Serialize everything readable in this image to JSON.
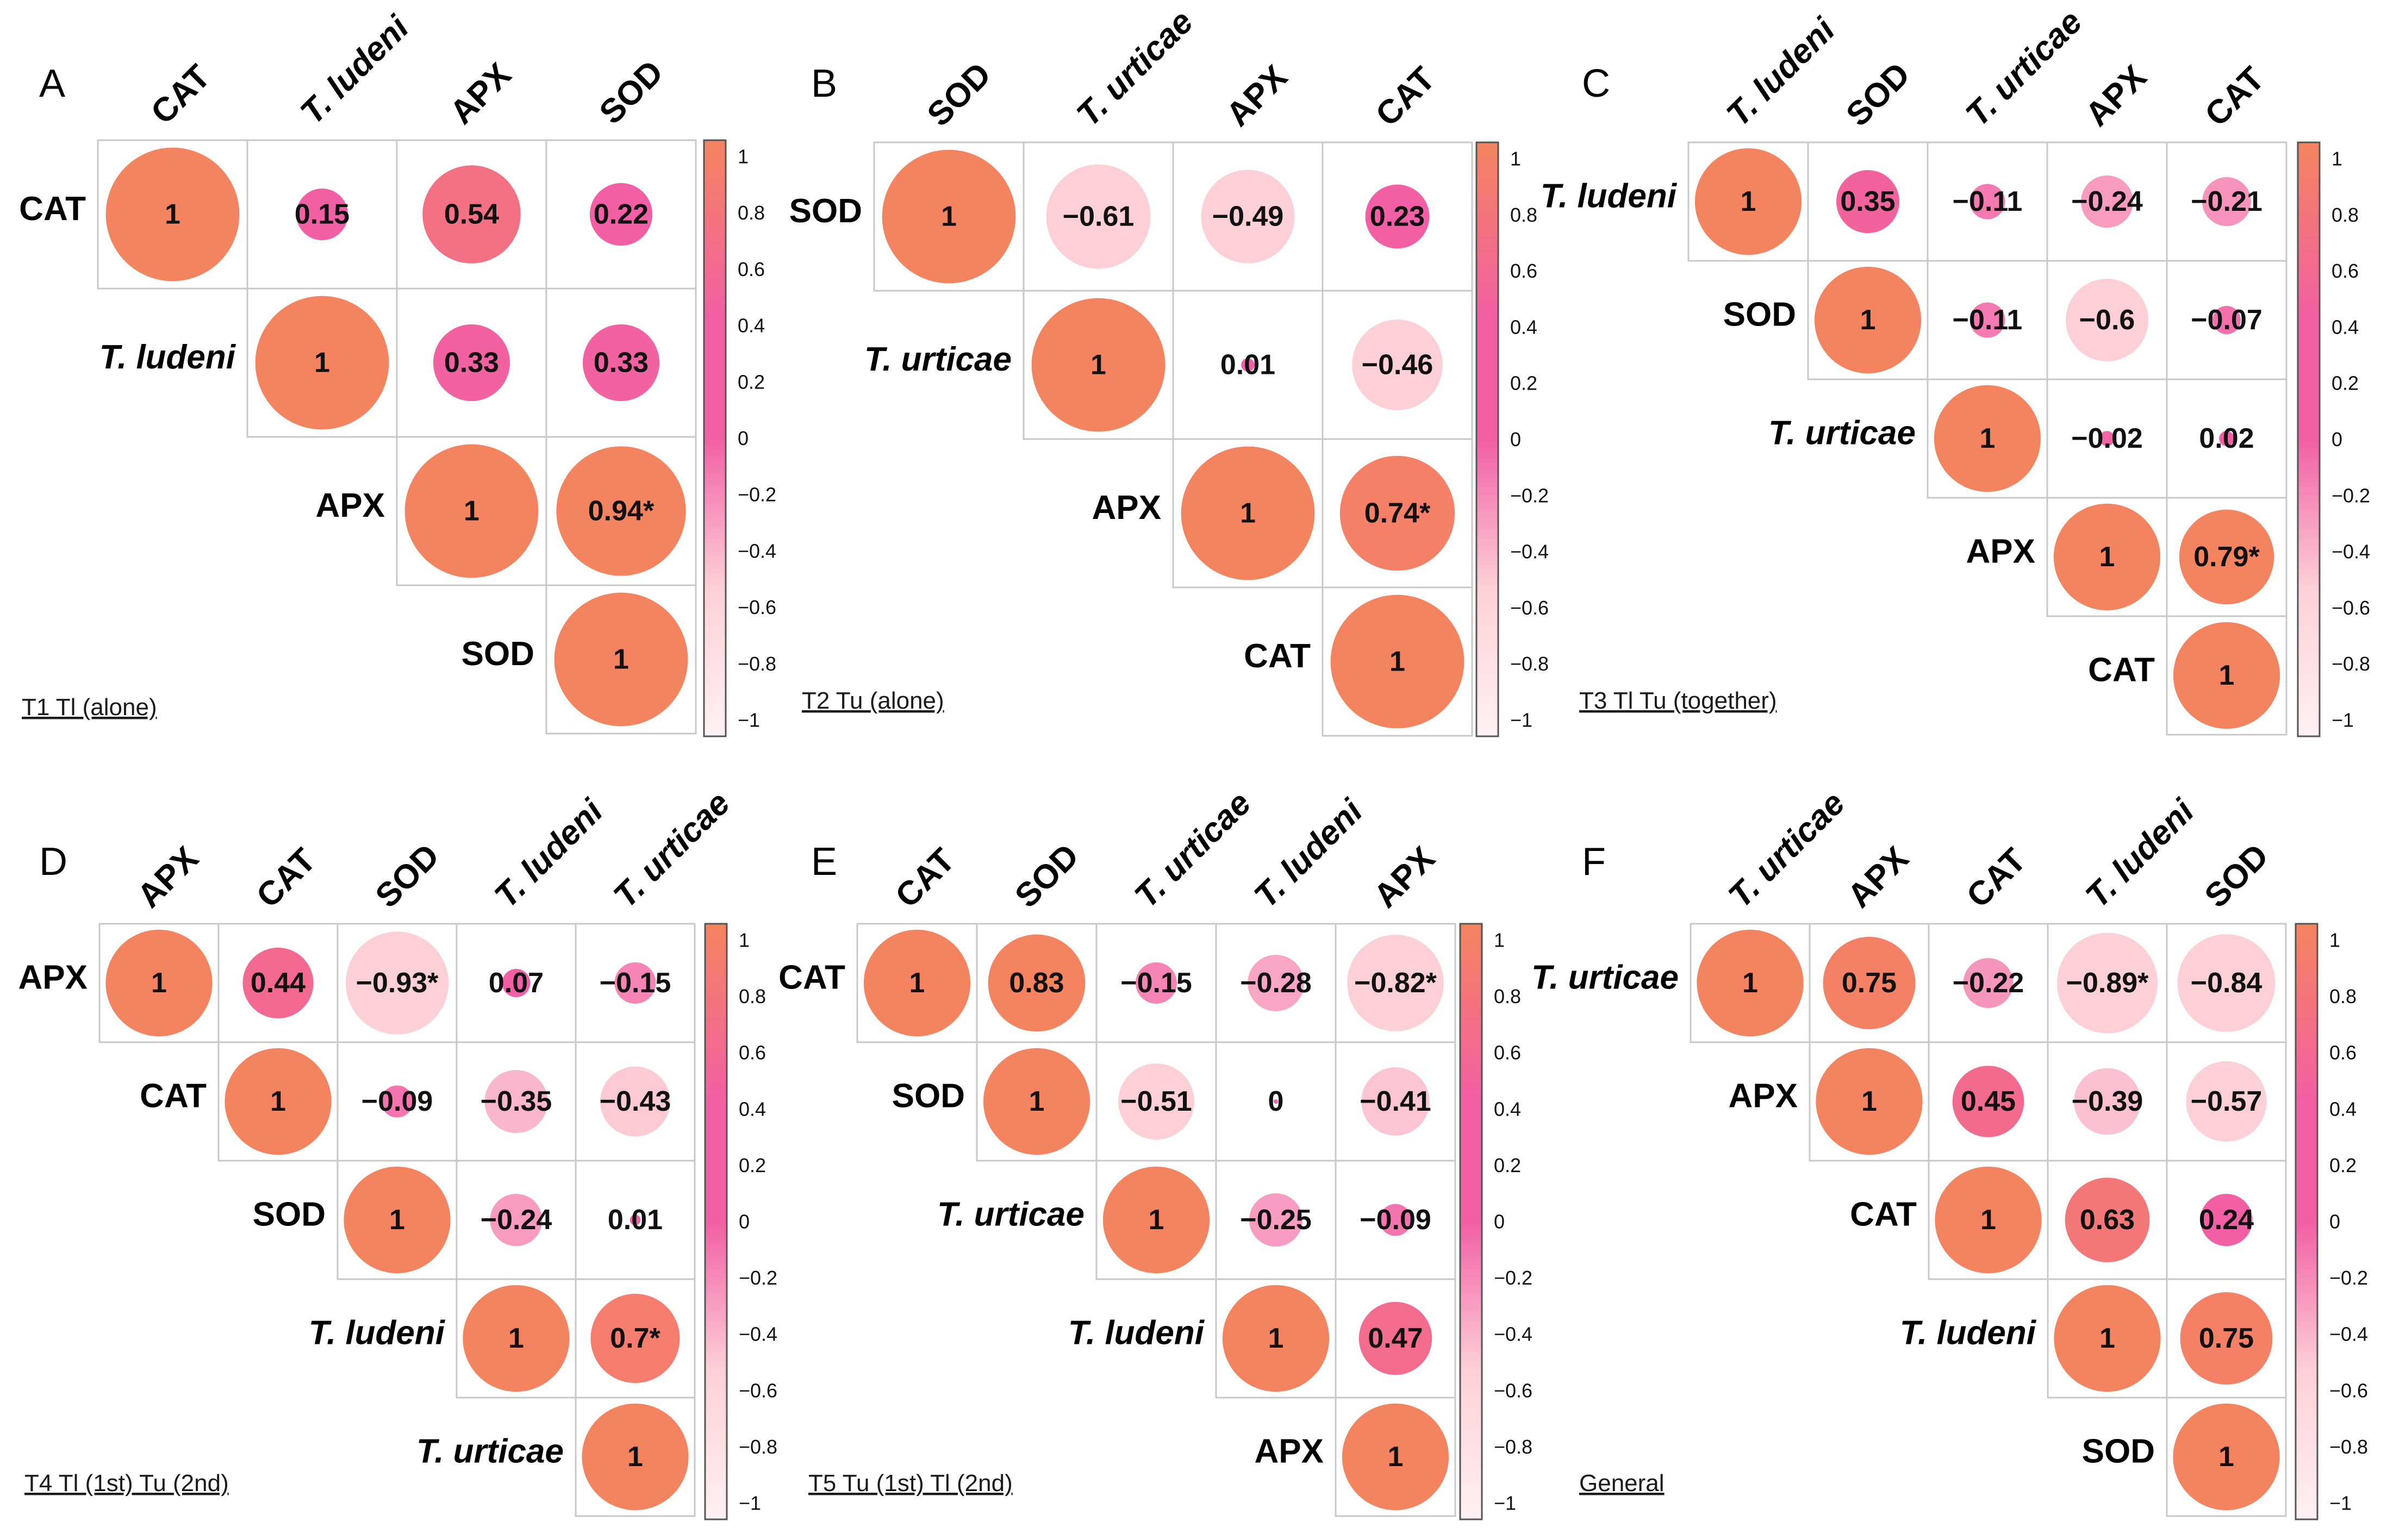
{
  "chart_data": [
    {
      "type": "heatmap",
      "panel": "A",
      "treatment": "T1 Tl (alone)",
      "variables": [
        "CAT",
        "T. ludeni",
        "APX",
        "SOD"
      ],
      "italic": [
        false,
        true,
        false,
        false
      ],
      "matrix": [
        [
          1,
          0.15,
          0.54,
          0.22
        ],
        [
          null,
          1,
          0.33,
          0.33
        ],
        [
          null,
          null,
          1,
          0.94
        ],
        [
          null,
          null,
          null,
          1
        ]
      ],
      "labels": [
        [
          "1",
          "0.15",
          "0.54",
          "0.22"
        ],
        [
          "",
          "1",
          "0.33",
          "0.33"
        ],
        [
          "",
          "",
          "1",
          "0.94*"
        ],
        [
          "",
          "",
          "",
          "1"
        ]
      ],
      "colorbar_ticks": [
        "1",
        "0.8",
        "0.6",
        "0.4",
        "0.2",
        "0",
        "−0.2",
        "−0.4",
        "−0.6",
        "−0.8",
        "−1"
      ],
      "colorbar_range": [
        -1,
        1
      ]
    },
    {
      "type": "heatmap",
      "panel": "B",
      "treatment": "T2 Tu (alone)",
      "variables": [
        "SOD",
        "T. urticae",
        "APX",
        "CAT"
      ],
      "italic": [
        false,
        true,
        false,
        false
      ],
      "matrix": [
        [
          1,
          -0.61,
          -0.49,
          0.23
        ],
        [
          null,
          1,
          0.01,
          -0.46
        ],
        [
          null,
          null,
          1,
          0.74
        ],
        [
          null,
          null,
          null,
          1
        ]
      ],
      "labels": [
        [
          "1",
          "−0.61",
          "−0.49",
          "0.23"
        ],
        [
          "",
          "1",
          "0.01",
          "−0.46"
        ],
        [
          "",
          "",
          "1",
          "0.74*"
        ],
        [
          "",
          "",
          "",
          "1"
        ]
      ],
      "colorbar_ticks": [
        "1",
        "0.8",
        "0.6",
        "0.4",
        "0.2",
        "0",
        "−0.2",
        "−0.4",
        "−0.6",
        "−0.8",
        "−1"
      ],
      "colorbar_range": [
        -1,
        1
      ]
    },
    {
      "type": "heatmap",
      "panel": "C",
      "treatment": "T3 Tl Tu (together)",
      "variables": [
        "T. ludeni",
        "SOD",
        "T. urticae",
        "APX",
        "CAT"
      ],
      "italic": [
        true,
        false,
        true,
        false,
        false
      ],
      "matrix": [
        [
          1,
          0.35,
          -0.11,
          -0.24,
          -0.21
        ],
        [
          null,
          1,
          -0.11,
          -0.6,
          -0.07
        ],
        [
          null,
          null,
          1,
          -0.02,
          0.02
        ],
        [
          null,
          null,
          null,
          1,
          0.79
        ],
        [
          null,
          null,
          null,
          null,
          1
        ]
      ],
      "labels": [
        [
          "1",
          "0.35",
          "−0.11",
          "−0.24",
          "−0.21"
        ],
        [
          "",
          "1",
          "−0.11",
          "−0.6",
          "−0.07"
        ],
        [
          "",
          "",
          "1",
          "−0.02",
          "0.02"
        ],
        [
          "",
          "",
          "",
          "1",
          "0.79*"
        ],
        [
          "",
          "",
          "",
          "",
          "1"
        ]
      ],
      "colorbar_ticks": [
        "1",
        "0.8",
        "0.6",
        "0.4",
        "0.2",
        "0",
        "−0.2",
        "−0.4",
        "−0.6",
        "−0.8",
        "−1"
      ],
      "colorbar_range": [
        -1,
        1
      ]
    },
    {
      "type": "heatmap",
      "panel": "D",
      "treatment": "T4 Tl (1st) Tu (2nd)",
      "variables": [
        "APX",
        "CAT",
        "SOD",
        "T. ludeni",
        "T. urticae"
      ],
      "italic": [
        false,
        false,
        false,
        true,
        true
      ],
      "matrix": [
        [
          1,
          0.44,
          -0.93,
          0.07,
          -0.15
        ],
        [
          null,
          1,
          -0.09,
          -0.35,
          -0.43
        ],
        [
          null,
          null,
          1,
          -0.24,
          0.01
        ],
        [
          null,
          null,
          null,
          1,
          0.7
        ],
        [
          null,
          null,
          null,
          null,
          1
        ]
      ],
      "labels": [
        [
          "1",
          "0.44",
          "−0.93*",
          "0.07",
          "−0.15"
        ],
        [
          "",
          "1",
          "−0.09",
          "−0.35",
          "−0.43"
        ],
        [
          "",
          "",
          "1",
          "−0.24",
          "0.01"
        ],
        [
          "",
          "",
          "",
          "1",
          "0.7*"
        ],
        [
          "",
          "",
          "",
          "",
          "1"
        ]
      ],
      "colorbar_ticks": [
        "1",
        "0.8",
        "0.6",
        "0.4",
        "0.2",
        "0",
        "−0.2",
        "−0.4",
        "−0.6",
        "−0.8",
        "−1"
      ],
      "colorbar_range": [
        -1,
        1
      ]
    },
    {
      "type": "heatmap",
      "panel": "E",
      "treatment": "T5 Tu (1st) Tl (2nd)",
      "variables": [
        "CAT",
        "SOD",
        "T. urticae",
        "T. ludeni",
        "APX"
      ],
      "italic": [
        false,
        false,
        true,
        true,
        false
      ],
      "matrix": [
        [
          1,
          0.83,
          -0.15,
          -0.28,
          -0.82
        ],
        [
          null,
          1,
          -0.51,
          0,
          -0.41
        ],
        [
          null,
          null,
          1,
          -0.25,
          -0.09
        ],
        [
          null,
          null,
          null,
          1,
          0.47
        ],
        [
          null,
          null,
          null,
          null,
          1
        ]
      ],
      "labels": [
        [
          "1",
          "0.83",
          "−0.15",
          "−0.28",
          "−0.82*"
        ],
        [
          "",
          "1",
          "−0.51",
          "0",
          "−0.41"
        ],
        [
          "",
          "",
          "1",
          "−0.25",
          "−0.09"
        ],
        [
          "",
          "",
          "",
          "1",
          "0.47"
        ],
        [
          "",
          "",
          "",
          "",
          "1"
        ]
      ],
      "colorbar_ticks": [
        "1",
        "0.8",
        "0.6",
        "0.4",
        "0.2",
        "0",
        "−0.2",
        "−0.4",
        "−0.6",
        "−0.8",
        "−1"
      ],
      "colorbar_range": [
        -1,
        1
      ]
    },
    {
      "type": "heatmap",
      "panel": "F",
      "treatment": "General",
      "variables": [
        "T. urticae",
        "APX",
        "CAT",
        "T. ludeni",
        "SOD"
      ],
      "italic": [
        true,
        false,
        false,
        true,
        false
      ],
      "matrix": [
        [
          1,
          0.75,
          -0.22,
          -0.89,
          -0.84
        ],
        [
          null,
          1,
          0.45,
          -0.39,
          -0.57
        ],
        [
          null,
          null,
          1,
          0.63,
          0.24
        ],
        [
          null,
          null,
          null,
          1,
          0.75
        ],
        [
          null,
          null,
          null,
          null,
          1
        ]
      ],
      "labels": [
        [
          "1",
          "0.75",
          "−0.22",
          "−0.89*",
          "−0.84"
        ],
        [
          "",
          "1",
          "0.45",
          "−0.39",
          "−0.57"
        ],
        [
          "",
          "",
          "1",
          "0.63",
          "0.24"
        ],
        [
          "",
          "",
          "",
          "1",
          "0.75"
        ],
        [
          "",
          "",
          "",
          "",
          "1"
        ]
      ],
      "colorbar_ticks": [
        "1",
        "0.8",
        "0.6",
        "0.4",
        "0.2",
        "0",
        "−0.2",
        "−0.4",
        "−0.6",
        "−0.8",
        "−1"
      ],
      "colorbar_range": [
        -1,
        1
      ]
    }
  ],
  "colors": {
    "strong_positive": "#f4845f",
    "mid_positive": "#f25fa4",
    "neutral": "#fff0f3",
    "negative_tint": "#fdd0d8",
    "cell_border": "#c8c8c8"
  }
}
